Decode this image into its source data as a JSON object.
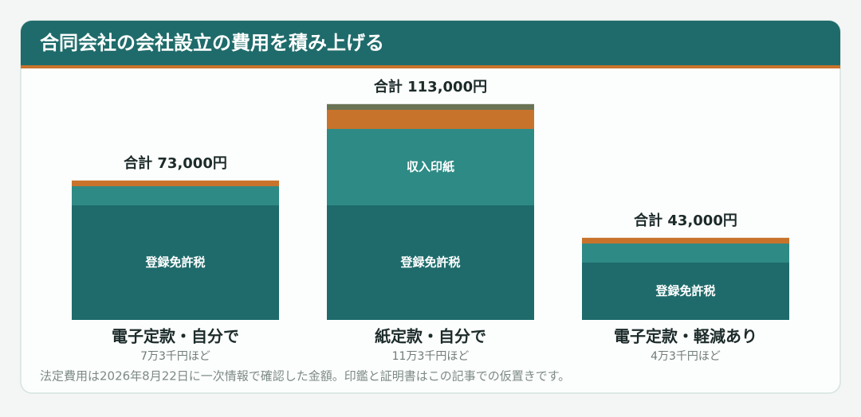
{
  "chart_data": {
    "type": "stacked_bar",
    "title": "合同会社の会社設立の費用を積み上げる",
    "footnote": "法定費用は2026年8月22日に一次情報で確認した金額。印鑑と証明書はこの記事での仮置きです。",
    "ylim": [
      0,
      120000
    ],
    "bars": [
      {
        "label": "電子定款・自分で",
        "sublabel": "7万3千円ほど",
        "total": 73000,
        "total_label": "合計 73,000円",
        "segments": [
          60000,
          10000,
          3000
        ],
        "segment_colors": [
          "#1f6b6b",
          "#2e8a85",
          "#c8732b"
        ],
        "segment_labels": [
          "登録免許税",
          null,
          null
        ]
      },
      {
        "label": "紙定款・自分で",
        "sublabel": "11万3千円ほど",
        "total": 113000,
        "total_label": "合計 113,000円",
        "segments": [
          60000,
          40000,
          10000,
          3000
        ],
        "segment_colors": [
          "#1f6b6b",
          "#2e8a85",
          "#c8732b",
          "#6b7355"
        ],
        "segment_labels": [
          "登録免許税",
          "収入印紙",
          null,
          null
        ]
      },
      {
        "label": "電子定款・軽減あり",
        "sublabel": "4万3千円ほど",
        "total": 43000,
        "total_label": "合計 43,000円",
        "segments": [
          30000,
          10000,
          3000
        ],
        "segment_colors": [
          "#1f6b6b",
          "#2e8a85",
          "#c8732b"
        ],
        "segment_labels": [
          "登録免許税",
          null,
          null
        ]
      }
    ]
  }
}
